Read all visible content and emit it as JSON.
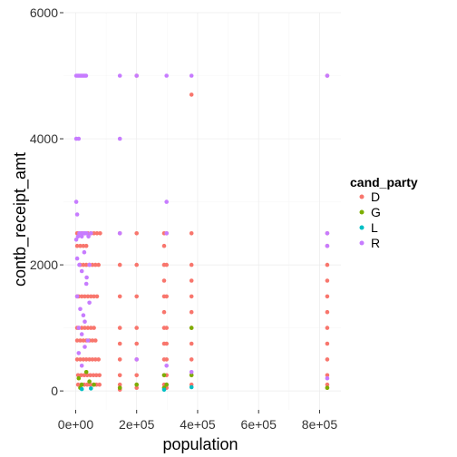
{
  "chart_data": {
    "type": "scatter",
    "title": "",
    "xlabel": "population",
    "ylabel": "contb_receipt_amt",
    "xlim": [
      -40000,
      870000
    ],
    "ylim": [
      -300,
      6000
    ],
    "x_ticks": [
      0,
      200000,
      400000,
      600000,
      800000
    ],
    "x_tick_labels": [
      "0e+00",
      "2e+05",
      "4e+05",
      "6e+05",
      "8e+05"
    ],
    "y_ticks": [
      0,
      2000,
      4000,
      6000
    ],
    "y_tick_labels": [
      "0",
      "2000",
      "4000",
      "6000"
    ],
    "grid": true,
    "legend": {
      "title": "cand_party",
      "position": "right",
      "entries": [
        {
          "label": "D",
          "color": "#F8766D"
        },
        {
          "label": "G",
          "color": "#7CAE00"
        },
        {
          "label": "L",
          "color": "#00BFC4"
        },
        {
          "label": "R",
          "color": "#C77CFF"
        }
      ]
    },
    "series": [
      {
        "name": "D",
        "color": "#F8766D",
        "x": [
          5000,
          10000,
          20000,
          30000,
          40000,
          50000,
          60000,
          70000,
          80000,
          15000,
          25000,
          35000,
          45000,
          55000,
          65000,
          75000,
          5000,
          10000,
          20000,
          30000,
          40000,
          50000,
          60000,
          70000,
          5000,
          10000,
          20000,
          30000,
          40000,
          50000,
          60000,
          5000,
          15000,
          25000,
          35000,
          45000,
          55000,
          65000,
          5000,
          15000,
          25000,
          35000,
          5000,
          15000,
          25000,
          35000,
          45000,
          55000,
          65000,
          75000,
          8000,
          18000,
          28000,
          38000,
          48000,
          58000,
          68000,
          78000,
          8000,
          18000,
          28000,
          38000,
          48000,
          58000,
          68000,
          78000,
          145000,
          145000,
          145000,
          145000,
          145000,
          145000,
          145000,
          145000,
          145000,
          145000,
          200000,
          200000,
          200000,
          200000,
          200000,
          200000,
          200000,
          200000,
          200000,
          200000,
          290000,
          290000,
          290000,
          290000,
          290000,
          290000,
          290000,
          290000,
          290000,
          290000,
          290000,
          290000,
          298000,
          298000,
          298000,
          298000,
          298000,
          298000,
          298000,
          298000,
          298000,
          380000,
          380000,
          380000,
          380000,
          380000,
          380000,
          380000,
          380000,
          380000,
          380000,
          380000,
          825000,
          825000,
          825000,
          825000,
          825000,
          825000,
          825000,
          825000,
          825000,
          825000,
          825000,
          825000,
          825000
        ],
        "y": [
          2500,
          2500,
          2500,
          2500,
          2500,
          2500,
          2500,
          2500,
          2500,
          2000,
          2000,
          2000,
          2000,
          2000,
          2000,
          2000,
          1500,
          1500,
          1500,
          1500,
          1500,
          1500,
          1500,
          1500,
          1000,
          1000,
          1000,
          1000,
          1000,
          1000,
          1000,
          800,
          800,
          800,
          800,
          800,
          800,
          800,
          2300,
          2300,
          2300,
          2300,
          500,
          500,
          500,
          500,
          500,
          500,
          500,
          500,
          250,
          250,
          250,
          250,
          250,
          250,
          250,
          250,
          100,
          100,
          100,
          100,
          100,
          100,
          100,
          100,
          2500,
          2000,
          1500,
          1000,
          750,
          500,
          250,
          100,
          50,
          20,
          2500,
          2000,
          1500,
          1000,
          750,
          500,
          250,
          100,
          50,
          5000,
          2500,
          2300,
          2000,
          1750,
          1500,
          1250,
          1000,
          750,
          500,
          250,
          100,
          50,
          2500,
          2000,
          1500,
          1000,
          750,
          500,
          250,
          100,
          50,
          4700,
          2500,
          2000,
          1750,
          1500,
          1250,
          1000,
          750,
          500,
          250,
          100,
          5000,
          2500,
          2300,
          2000,
          1750,
          1500,
          1250,
          1000,
          750,
          500,
          250,
          100,
          50
        ]
      },
      {
        "name": "G",
        "color": "#7CAE00",
        "x": [
          10000,
          20000,
          35000,
          60000,
          15000,
          45000,
          290000,
          298000,
          290000,
          380000,
          380000,
          200000,
          145000,
          825000
        ],
        "y": [
          200,
          100,
          300,
          100,
          50,
          150,
          250,
          100,
          50,
          1000,
          250,
          100,
          50,
          50
        ]
      },
      {
        "name": "L",
        "color": "#00BFC4",
        "x": [
          20000,
          50000,
          290000,
          380000
        ],
        "y": [
          30,
          40,
          20,
          60
        ]
      },
      {
        "name": "R",
        "color": "#C77CFF",
        "x": [
          2000,
          6000,
          10000,
          14000,
          18000,
          22000,
          26000,
          30000,
          34000,
          145000,
          200000,
          298000,
          380000,
          825000,
          2000,
          10000,
          145000,
          2000,
          5000,
          298000,
          2000,
          8000,
          12000,
          16000,
          20000,
          24000,
          28000,
          30000,
          36000,
          42000,
          50000,
          145000,
          298000,
          825000,
          5000,
          12000,
          20000,
          28000,
          36000,
          45000,
          5000,
          15000,
          25000,
          35000,
          45000,
          10000,
          20000,
          30000,
          40000,
          10000,
          20000,
          30000,
          200000,
          298000,
          380000,
          825000,
          825000
        ],
        "y": [
          5000,
          5000,
          5000,
          5000,
          5000,
          5000,
          5000,
          5000,
          5000,
          5000,
          5000,
          5000,
          5000,
          5000,
          4000,
          4000,
          4000,
          3000,
          2800,
          3000,
          2400,
          2450,
          2500,
          2500,
          2450,
          2500,
          2500,
          2500,
          2500,
          2450,
          2500,
          2500,
          2500,
          2500,
          2100,
          2000,
          1900,
          2200,
          1800,
          2000,
          1500,
          1300,
          1200,
          1700,
          1400,
          1000,
          900,
          1100,
          800,
          600,
          400,
          700,
          500,
          400,
          300,
          2300,
          200
        ]
      }
    ]
  }
}
